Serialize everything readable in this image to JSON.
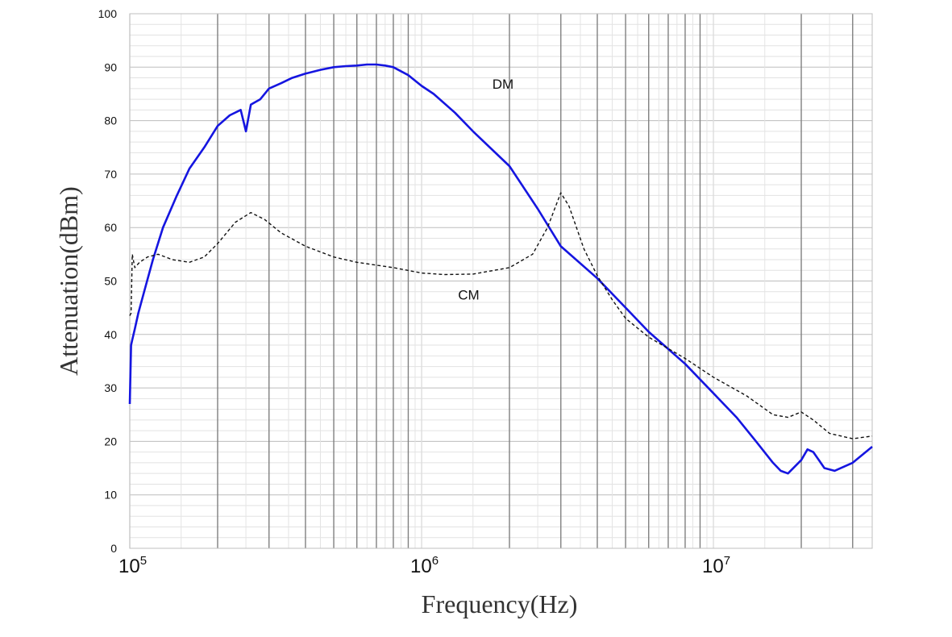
{
  "chart_data": {
    "type": "line",
    "xscale": "log",
    "xlabel": "Frequency(Hz)",
    "ylabel": "Attenuation(dBm)",
    "xlim": [
      100000,
      35000000
    ],
    "ylim": [
      0,
      100
    ],
    "grid": true,
    "legend": "none",
    "x_ticks": [
      {
        "value": 100000,
        "base": "10",
        "exp": "5"
      },
      {
        "value": 1000000,
        "base": "10",
        "exp": "6"
      },
      {
        "value": 10000000,
        "base": "10",
        "exp": "7"
      }
    ],
    "y_ticks": [
      "0",
      "10",
      "20",
      "30",
      "40",
      "50",
      "60",
      "70",
      "80",
      "90",
      "100"
    ],
    "annotations": [
      {
        "text": "DM",
        "x": 1900000,
        "y": 86
      },
      {
        "text": "CM",
        "x": 1450000,
        "y": 46.5
      }
    ],
    "series": [
      {
        "label": "DM",
        "color": "#1515e0",
        "style": "solid",
        "x": [
          100000,
          101000,
          102000,
          104000,
          107000,
          112000,
          120000,
          130000,
          145000,
          160000,
          180000,
          200000,
          220000,
          240000,
          250000,
          260000,
          280000,
          300000,
          330000,
          360000,
          400000,
          450000,
          500000,
          550000,
          600000,
          650000,
          700000,
          750000,
          800000,
          900000,
          1000000,
          1100000,
          1300000,
          1500000,
          2000000,
          2500000,
          3000000,
          4000000,
          5000000,
          6000000,
          8000000,
          10000000,
          12000000,
          14000000,
          16000000,
          17000000,
          18000000,
          20000000,
          21000000,
          22000000,
          24000000,
          26000000,
          30000000,
          35000000
        ],
        "y": [
          27,
          38,
          39,
          41,
          44,
          48,
          54,
          60,
          66,
          71,
          75,
          79,
          81,
          82,
          78,
          83,
          84,
          86,
          87,
          88,
          88.8,
          89.5,
          90,
          90.2,
          90.3,
          90.5,
          90.5,
          90.3,
          90,
          88.5,
          86.5,
          85,
          81.5,
          78,
          71.5,
          63.5,
          56.5,
          50.5,
          45,
          40.5,
          34.5,
          29,
          24.5,
          20,
          16,
          14.5,
          14,
          16.5,
          18.5,
          18,
          15,
          14.5,
          16,
          19
        ]
      },
      {
        "label": "CM",
        "color": "#111111",
        "style": "dashed",
        "x": [
          100000,
          101000,
          102000,
          104000,
          108000,
          115000,
          125000,
          140000,
          160000,
          180000,
          200000,
          230000,
          260000,
          290000,
          330000,
          400000,
          500000,
          600000,
          800000,
          1000000,
          1200000,
          1500000,
          2000000,
          2400000,
          2700000,
          3000000,
          3200000,
          3600000,
          4000000,
          4500000,
          5000000,
          6000000,
          8000000,
          10000000,
          13000000,
          16000000,
          18000000,
          20000000,
          22000000,
          25000000,
          30000000,
          35000000
        ],
        "y": [
          43.5,
          44,
          55,
          52.5,
          53.5,
          54.5,
          55,
          54,
          53.5,
          54.5,
          57,
          61,
          62.8,
          61.5,
          59,
          56.5,
          54.5,
          53.5,
          52.5,
          51.5,
          51.2,
          51.3,
          52.5,
          55,
          60,
          66.5,
          64,
          56,
          51,
          46.5,
          43,
          39.5,
          35.5,
          32,
          28.5,
          25,
          24.5,
          25.5,
          24,
          21.5,
          20.5,
          21
        ]
      }
    ]
  }
}
